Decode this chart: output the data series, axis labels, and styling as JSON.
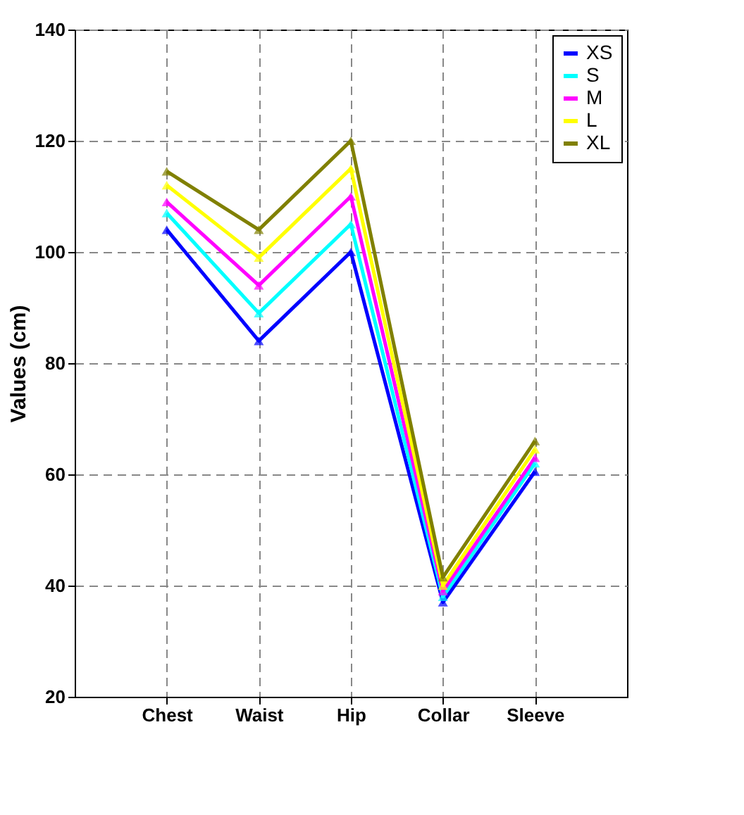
{
  "chart_data": {
    "type": "line",
    "ylabel": "Values (cm)",
    "categories": [
      "Chest",
      "Waist",
      "Hip",
      "Collar",
      "Sleeve"
    ],
    "series": [
      {
        "name": "XS",
        "color": "#0000ff",
        "values": [
          104,
          84,
          100,
          37,
          60.5
        ]
      },
      {
        "name": "S",
        "color": "#00ffff",
        "values": [
          107,
          89,
          105,
          38,
          62
        ]
      },
      {
        "name": "M",
        "color": "#ff00ff",
        "values": [
          109,
          94,
          110,
          39,
          63
        ]
      },
      {
        "name": "L",
        "color": "#ffff00",
        "values": [
          112,
          99,
          115,
          40,
          64.5
        ]
      },
      {
        "name": "XL",
        "color": "#808000",
        "values": [
          114.5,
          104,
          120,
          41.5,
          66
        ]
      }
    ],
    "ylim": [
      20,
      140
    ],
    "yticks": [
      20,
      40,
      60,
      80,
      100,
      120,
      140
    ],
    "grid": true,
    "legend": "top right",
    "marker": "triangle",
    "line_style": "solid"
  }
}
